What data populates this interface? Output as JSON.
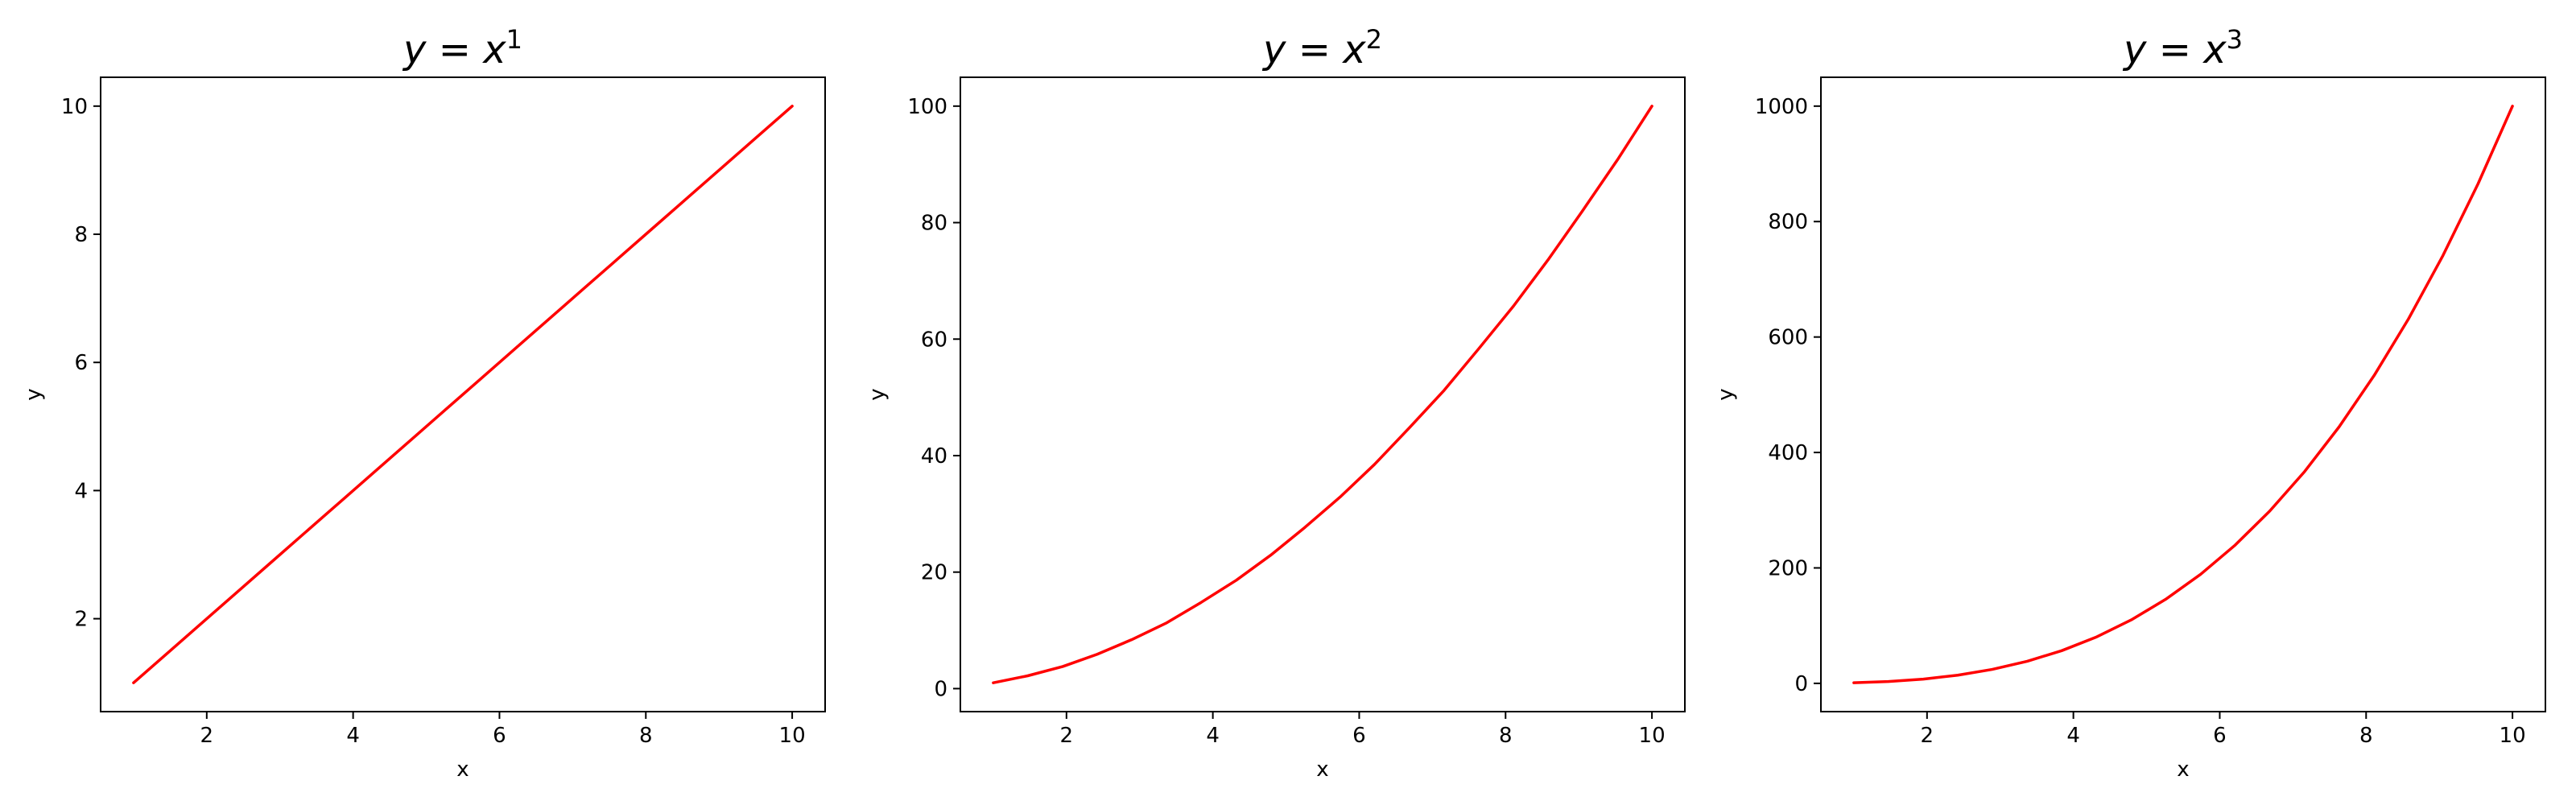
{
  "chart_data": [
    {
      "type": "line",
      "title": {
        "base": "y = x",
        "exponent": "1"
      },
      "xlabel": "x",
      "ylabel": "y",
      "xlim": [
        0.55,
        10.45
      ],
      "ylim": [
        0.55,
        10.45
      ],
      "xticks": [
        2,
        4,
        6,
        8,
        10
      ],
      "yticks": [
        2,
        4,
        6,
        8,
        10
      ],
      "color": "#ff0000",
      "power": 1,
      "series": [
        {
          "x": [
            1,
            1.47,
            1.95,
            2.42,
            2.89,
            3.37,
            3.84,
            4.32,
            4.79,
            5.26,
            5.74,
            6.21,
            6.68,
            7.16,
            7.63,
            8.11,
            8.58,
            9.05,
            9.53,
            10
          ],
          "y": [
            1,
            1.47,
            1.95,
            2.42,
            2.89,
            3.37,
            3.84,
            4.32,
            4.79,
            5.26,
            5.74,
            6.21,
            6.68,
            7.16,
            7.63,
            8.11,
            8.58,
            9.05,
            9.53,
            10
          ]
        }
      ]
    },
    {
      "type": "line",
      "title": {
        "base": "y = x",
        "exponent": "2"
      },
      "xlabel": "x",
      "ylabel": "y",
      "xlim": [
        0.55,
        10.45
      ],
      "ylim": [
        -3.95,
        104.95
      ],
      "xticks": [
        2,
        4,
        6,
        8,
        10
      ],
      "yticks": [
        0,
        20,
        40,
        60,
        80,
        100
      ],
      "color": "#ff0000",
      "power": 2,
      "series": [
        {
          "x": [
            1,
            1.47,
            1.95,
            2.42,
            2.89,
            3.37,
            3.84,
            4.32,
            4.79,
            5.26,
            5.74,
            6.21,
            6.68,
            7.16,
            7.63,
            8.11,
            8.58,
            9.05,
            9.53,
            10
          ],
          "y": [
            1,
            2.2,
            3.8,
            5.9,
            8.4,
            11.3,
            14.8,
            18.6,
            22.9,
            27.7,
            32.9,
            38.5,
            44.7,
            51.2,
            58.3,
            65.7,
            73.6,
            82,
            90.8,
            100
          ]
        }
      ]
    },
    {
      "type": "line",
      "title": {
        "base": "y = x",
        "exponent": "3"
      },
      "xlabel": "x",
      "ylabel": "y",
      "xlim": [
        0.55,
        10.45
      ],
      "ylim": [
        -48.95,
        1049.95
      ],
      "xticks": [
        2,
        4,
        6,
        8,
        10
      ],
      "yticks": [
        0,
        200,
        400,
        600,
        800,
        1000
      ],
      "color": "#ff0000",
      "power": 3,
      "series": [
        {
          "x": [
            1,
            1.47,
            1.95,
            2.42,
            2.89,
            3.37,
            3.84,
            4.32,
            4.79,
            5.26,
            5.74,
            6.21,
            6.68,
            7.16,
            7.63,
            8.11,
            8.58,
            9.05,
            9.53,
            10
          ],
          "y": [
            1,
            3.2,
            7.4,
            14.2,
            24.2,
            38.3,
            56.6,
            80.6,
            109.9,
            145.5,
            189.1,
            239.5,
            298.1,
            367,
            444.2,
            533.4,
            631.6,
            741.2,
            865.5,
            1000
          ]
        }
      ]
    }
  ]
}
